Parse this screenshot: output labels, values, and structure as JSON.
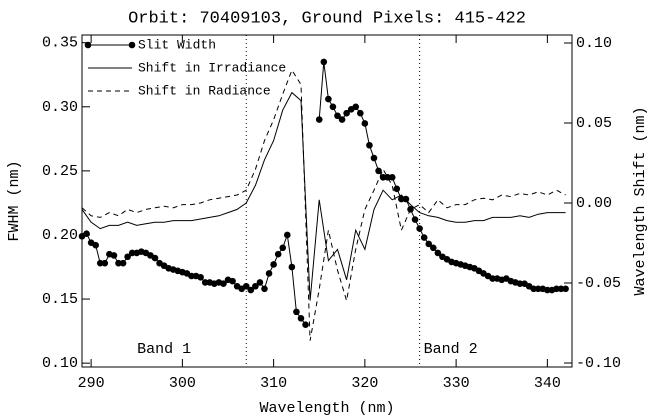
{
  "chart_data": {
    "type": "line",
    "title": "Orbit: 70409103, Ground Pixels: 415-422",
    "x_label": "Wavelength (nm)",
    "y_label": "FWHM (nm)",
    "y2_label": "Wavelength Shift (nm)",
    "xlim": [
      289,
      342.7
    ],
    "xticks": [
      290,
      300,
      310,
      320,
      330,
      340
    ],
    "ylim": [
      0.097,
      0.356
    ],
    "yticks": [
      {
        "value": 0.1,
        "label": "0.10"
      },
      0.15,
      {
        "value": 0.2,
        "label": "0.20"
      },
      0.25,
      {
        "value": 0.3,
        "label": "0.30"
      },
      0.35
    ],
    "y2lim": [
      -0.1025,
      0.105
    ],
    "y2ticks": [
      {
        "value": -0.1,
        "label": "-0.10"
      },
      -0.05,
      {
        "value": 0,
        "label": "0.00"
      },
      0.05,
      {
        "value": 0.1,
        "label": "0.10"
      }
    ],
    "vlines": [
      307,
      326
    ],
    "annotations": [
      "Band 1",
      "Band 2"
    ],
    "series": [
      {
        "name": "Slit Width",
        "color": "#000000",
        "marker": "circle",
        "linestyle": "solid",
        "x": [
          289.0,
          289.5,
          290.0,
          290.5,
          291.0,
          291.5,
          292.0,
          292.5,
          293.0,
          293.5,
          294.0,
          294.5,
          295.0,
          295.5,
          296.0,
          296.5,
          297.0,
          297.5,
          298.0,
          298.5,
          299.0,
          299.5,
          300.0,
          300.5,
          301.0,
          301.5,
          302.0,
          302.5,
          303.0,
          303.5,
          304.0,
          304.5,
          305.0,
          305.5,
          306.0,
          306.5,
          307.0,
          307.5,
          308.0,
          308.5,
          309.0,
          309.5,
          310.0,
          310.5,
          311.0,
          311.5,
          312.0,
          312.5,
          313.0,
          313.5,
          314.0,
          314.5,
          315.0,
          315.5,
          316.0,
          316.5,
          317.0,
          317.5,
          318.0,
          318.5,
          319.0,
          319.5,
          320.0,
          320.5,
          321.0,
          321.5,
          322.0,
          322.5,
          323.0,
          323.5,
          324.0,
          324.5,
          325.0,
          325.5,
          326.0,
          326.5,
          327.0,
          327.5,
          328.0,
          328.5,
          329.0,
          329.5,
          330.0,
          330.5,
          331.0,
          331.5,
          332.0,
          332.5,
          333.0,
          333.5,
          334.0,
          334.5,
          335.0,
          335.5,
          336.0,
          336.5,
          337.0,
          337.5,
          338.0,
          338.5,
          339.0,
          339.5,
          340.0,
          340.5,
          341.0,
          341.5,
          342.0
        ],
        "values": [
          0.199,
          0.201,
          0.194,
          0.192,
          0.178,
          0.178,
          0.185,
          0.184,
          0.178,
          0.178,
          0.183,
          0.186,
          0.186,
          0.187,
          0.186,
          0.184,
          0.182,
          0.178,
          0.176,
          0.174,
          0.173,
          0.172,
          0.171,
          0.17,
          0.168,
          0.168,
          0.167,
          0.163,
          0.163,
          0.162,
          0.163,
          0.162,
          0.165,
          0.164,
          0.16,
          0.158,
          0.16,
          0.157,
          0.16,
          0.163,
          0.158,
          0.17,
          0.177,
          0.185,
          0.19,
          0.2,
          0.175,
          0.14,
          0.135,
          0.13,
          null,
          null,
          0.29,
          0.335,
          0.306,
          0.3,
          0.293,
          0.29,
          0.295,
          0.298,
          0.3,
          0.295,
          0.287,
          0.27,
          0.26,
          0.25,
          0.245,
          0.245,
          0.245,
          0.236,
          0.228,
          0.228,
          0.22,
          0.212,
          0.205,
          0.198,
          0.193,
          0.19,
          0.186,
          0.183,
          0.181,
          0.179,
          0.178,
          0.177,
          0.176,
          0.175,
          0.174,
          0.172,
          0.17,
          0.168,
          0.166,
          0.166,
          0.165,
          0.166,
          0.164,
          0.163,
          0.162,
          0.162,
          0.16,
          0.158,
          0.158,
          0.158,
          0.157,
          0.157,
          0.158,
          0.158,
          0.158
        ]
      },
      {
        "name": "Shift in Irradiance",
        "color": "#000000",
        "linestyle": "solid",
        "axis": "y2",
        "x": [
          289,
          290,
          291,
          292,
          293,
          294,
          295,
          296,
          297,
          298,
          299,
          300,
          301,
          302,
          303,
          304,
          305,
          306,
          307,
          308,
          309,
          310,
          311,
          312,
          313,
          314,
          315,
          316,
          317,
          318,
          319,
          320,
          321,
          322,
          323,
          324,
          325,
          326,
          327,
          328,
          329,
          330,
          331,
          332,
          333,
          334,
          335,
          336,
          337,
          338,
          339,
          340,
          341,
          342
        ],
        "values": [
          -0.004,
          -0.012,
          -0.016,
          -0.014,
          -0.014,
          -0.012,
          -0.014,
          -0.013,
          -0.012,
          -0.012,
          -0.011,
          -0.011,
          -0.011,
          -0.01,
          -0.009,
          -0.008,
          -0.006,
          -0.004,
          0.0,
          0.011,
          0.027,
          0.039,
          0.058,
          0.069,
          0.064,
          -0.061,
          0.002,
          -0.036,
          -0.029,
          -0.048,
          -0.017,
          -0.029,
          -0.004,
          0.008,
          0.002,
          0.005,
          -0.001,
          -0.006,
          -0.008,
          -0.009,
          -0.011,
          -0.012,
          -0.012,
          -0.011,
          -0.011,
          -0.009,
          -0.009,
          -0.009,
          -0.008,
          -0.009,
          -0.007,
          -0.006,
          -0.006,
          -0.006
        ]
      },
      {
        "name": "Shift in Radiance",
        "color": "#000000",
        "linestyle": "dashed",
        "axis": "y2",
        "x": [
          289,
          290,
          291,
          292,
          293,
          294,
          295,
          296,
          297,
          298,
          299,
          300,
          301,
          302,
          303,
          304,
          305,
          306,
          307,
          308,
          309,
          310,
          311,
          312,
          313,
          314,
          315,
          316,
          317,
          318,
          319,
          320,
          321,
          322,
          323,
          324,
          325,
          326,
          327,
          328,
          329,
          330,
          331,
          332,
          333,
          334,
          335,
          336,
          337,
          338,
          339,
          340,
          341,
          342
        ],
        "values": [
          -0.003,
          -0.008,
          -0.009,
          -0.006,
          -0.008,
          -0.004,
          -0.006,
          -0.004,
          -0.003,
          -0.002,
          -0.003,
          -0.001,
          -0.001,
          0.0,
          0.002,
          0.003,
          0.004,
          0.005,
          0.008,
          0.021,
          0.039,
          0.052,
          0.068,
          0.083,
          0.074,
          -0.086,
          -0.054,
          -0.017,
          -0.042,
          -0.061,
          -0.029,
          -0.004,
          0.008,
          0.021,
          0.011,
          -0.017,
          -0.004,
          -0.001,
          -0.006,
          0.002,
          -0.003,
          -0.001,
          -0.001,
          0.002,
          0.003,
          0.002,
          0.005,
          0.004,
          0.006,
          0.005,
          0.007,
          0.005,
          0.008,
          0.005
        ]
      }
    ]
  }
}
